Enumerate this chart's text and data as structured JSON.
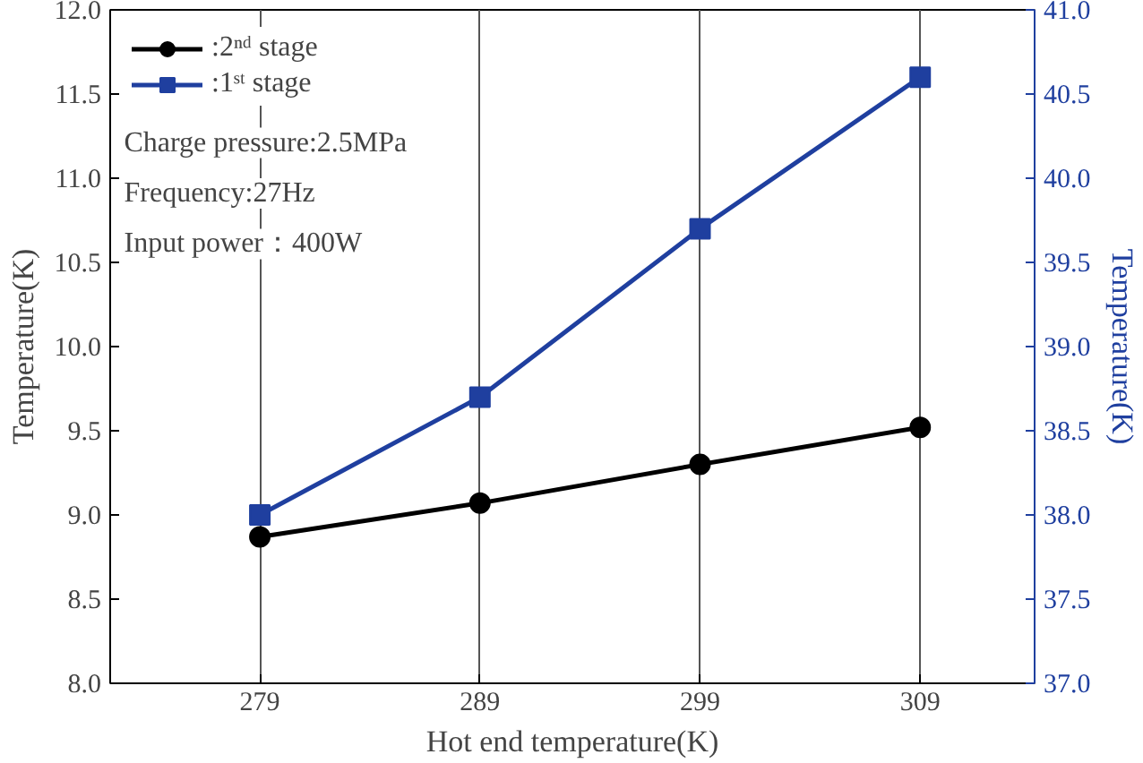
{
  "chart_data": {
    "type": "line",
    "xlabel": "Hot end temperature(K)",
    "ylabel": "Temperature(K)",
    "y2label": "Temperature(K)",
    "x": [
      279,
      289,
      299,
      309
    ],
    "xlim": [
      272.2,
      314.2
    ],
    "xticks": [
      279,
      289,
      299,
      309
    ],
    "ylim": [
      8,
      12
    ],
    "yticks": [
      {
        "value": 8,
        "label": "8.0"
      },
      {
        "value": 8.5,
        "label": "8.5"
      },
      {
        "value": 9,
        "label": "9.0"
      },
      {
        "value": 9.5,
        "label": "9.5"
      },
      {
        "value": 10,
        "label": "10.0"
      },
      {
        "value": 10.5,
        "label": "10.5"
      },
      {
        "value": 11,
        "label": "11.0"
      },
      {
        "value": 11.5,
        "label": "11.5"
      },
      {
        "value": 12,
        "label": "12.0"
      }
    ],
    "y2lim": [
      37,
      41
    ],
    "y2ticks": [
      {
        "value": 37,
        "label": "37.0"
      },
      {
        "value": 37.5,
        "label": "37.5"
      },
      {
        "value": 38,
        "label": "38.0"
      },
      {
        "value": 38.5,
        "label": "38.5"
      },
      {
        "value": 39,
        "label": "39.0"
      },
      {
        "value": 39.5,
        "label": "39.5"
      },
      {
        "value": 40,
        "label": "40.0"
      },
      {
        "value": 40.5,
        "label": "40.5"
      },
      {
        "value": 41,
        "label": "41.0"
      }
    ],
    "series": [
      {
        "name": ":2ⁿᵈ stage",
        "color": "#000000",
        "marker": "circle",
        "values": [
          8.87,
          9.07,
          9.3,
          9.52
        ]
      },
      {
        "name": ":1ˢᵗ stage",
        "color": "#1f3f9f",
        "marker": "square",
        "axis": "y2",
        "values": [
          38.0,
          38.7,
          39.7,
          40.6
        ]
      }
    ],
    "annotations": [
      "Charge pressure:2.5MPa",
      "Frequency:27Hz",
      "Input power：400W"
    ],
    "grid": "x",
    "legend": "top left",
    "line_style": "solid"
  }
}
